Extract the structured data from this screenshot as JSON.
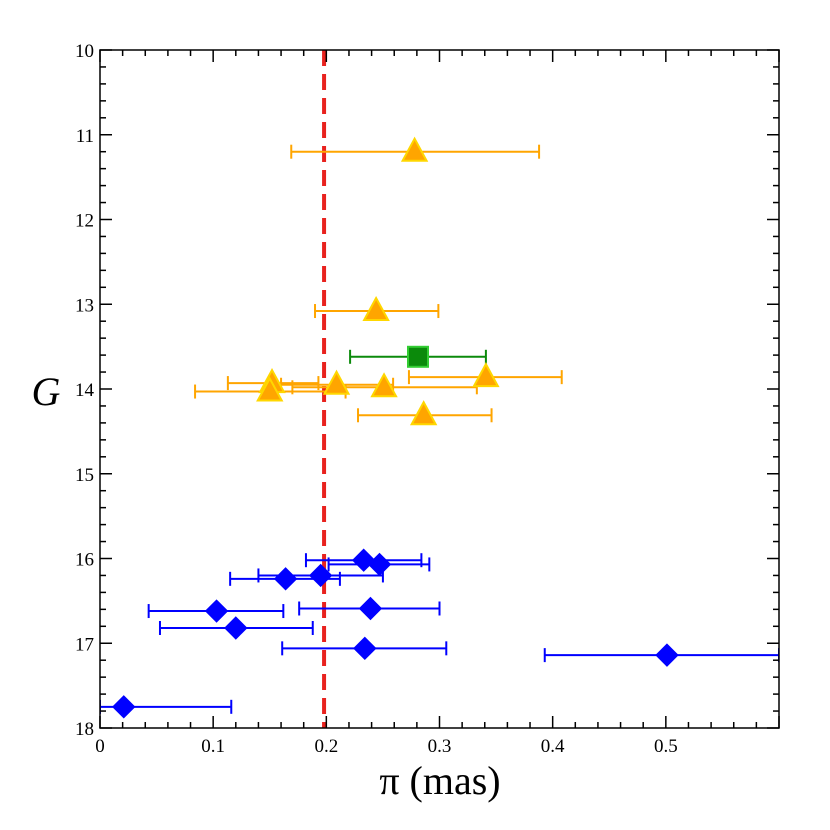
{
  "chart_data": {
    "type": "scatter",
    "title": "",
    "xlabel": "π  (mas)",
    "ylabel": "G",
    "xlim": [
      0,
      0.6
    ],
    "ylim": [
      10,
      18
    ],
    "y_inverted": true,
    "x_ticks": [
      0,
      0.1,
      0.2,
      0.3,
      0.4,
      0.5
    ],
    "x_tick_labels": [
      "0",
      "0.1",
      "0.2",
      "0.3",
      "0.4",
      "0.5"
    ],
    "y_ticks": [
      10,
      11,
      12,
      13,
      14,
      15,
      16,
      17,
      18
    ],
    "y_tick_labels": [
      "10",
      "11",
      "12",
      "13",
      "14",
      "15",
      "16",
      "17",
      "18"
    ],
    "reference_line": {
      "x": 0.198,
      "color": "#e8221e",
      "style": "dashed"
    },
    "series": [
      {
        "name": "triangles",
        "marker": "triangle",
        "color": "#ffa500",
        "edge_color": "#ffd700",
        "error_color": "#ffa500",
        "points": [
          {
            "x": 0.278,
            "y": 11.2,
            "xerr_low": 0.169,
            "xerr_high": 0.388
          },
          {
            "x": 0.244,
            "y": 13.08,
            "xerr_low": 0.19,
            "xerr_high": 0.299
          },
          {
            "x": 0.341,
            "y": 13.86,
            "xerr_low": 0.273,
            "xerr_high": 0.408
          },
          {
            "x": 0.152,
            "y": 13.93,
            "xerr_low": 0.113,
            "xerr_high": 0.193
          },
          {
            "x": 0.209,
            "y": 13.95,
            "xerr_low": 0.16,
            "xerr_high": 0.259
          },
          {
            "x": 0.251,
            "y": 13.98,
            "xerr_low": 0.17,
            "xerr_high": 0.333
          },
          {
            "x": 0.15,
            "y": 14.03,
            "xerr_low": 0.084,
            "xerr_high": 0.217
          },
          {
            "x": 0.286,
            "y": 14.31,
            "xerr_low": 0.228,
            "xerr_high": 0.346
          }
        ]
      },
      {
        "name": "square",
        "marker": "square",
        "color": "#0b8a0b",
        "edge_color": "#32cd32",
        "error_color": "#0b8a0b",
        "points": [
          {
            "x": 0.281,
            "y": 13.62,
            "xerr_low": 0.221,
            "xerr_high": 0.341
          }
        ]
      },
      {
        "name": "diamonds",
        "marker": "diamond",
        "color": "#0000ff",
        "edge_color": "#0000ff",
        "error_color": "#0000ff",
        "points": [
          {
            "x": 0.233,
            "y": 16.02,
            "xerr_low": 0.182,
            "xerr_high": 0.284
          },
          {
            "x": 0.247,
            "y": 16.07,
            "xerr_low": 0.202,
            "xerr_high": 0.291
          },
          {
            "x": 0.195,
            "y": 16.2,
            "xerr_low": 0.14,
            "xerr_high": 0.25
          },
          {
            "x": 0.164,
            "y": 16.24,
            "xerr_low": 0.115,
            "xerr_high": 0.212
          },
          {
            "x": 0.239,
            "y": 16.59,
            "xerr_low": 0.176,
            "xerr_high": 0.3
          },
          {
            "x": 0.103,
            "y": 16.62,
            "xerr_low": 0.043,
            "xerr_high": 0.162
          },
          {
            "x": 0.12,
            "y": 16.82,
            "xerr_low": 0.053,
            "xerr_high": 0.188
          },
          {
            "x": 0.234,
            "y": 17.06,
            "xerr_low": 0.161,
            "xerr_high": 0.306
          },
          {
            "x": 0.501,
            "y": 17.14,
            "xerr_low": 0.393,
            "xerr_high": 0.6
          },
          {
            "x": 0.021,
            "y": 17.75,
            "xerr_low": 0.0,
            "xerr_high": 0.116
          }
        ]
      }
    ]
  }
}
